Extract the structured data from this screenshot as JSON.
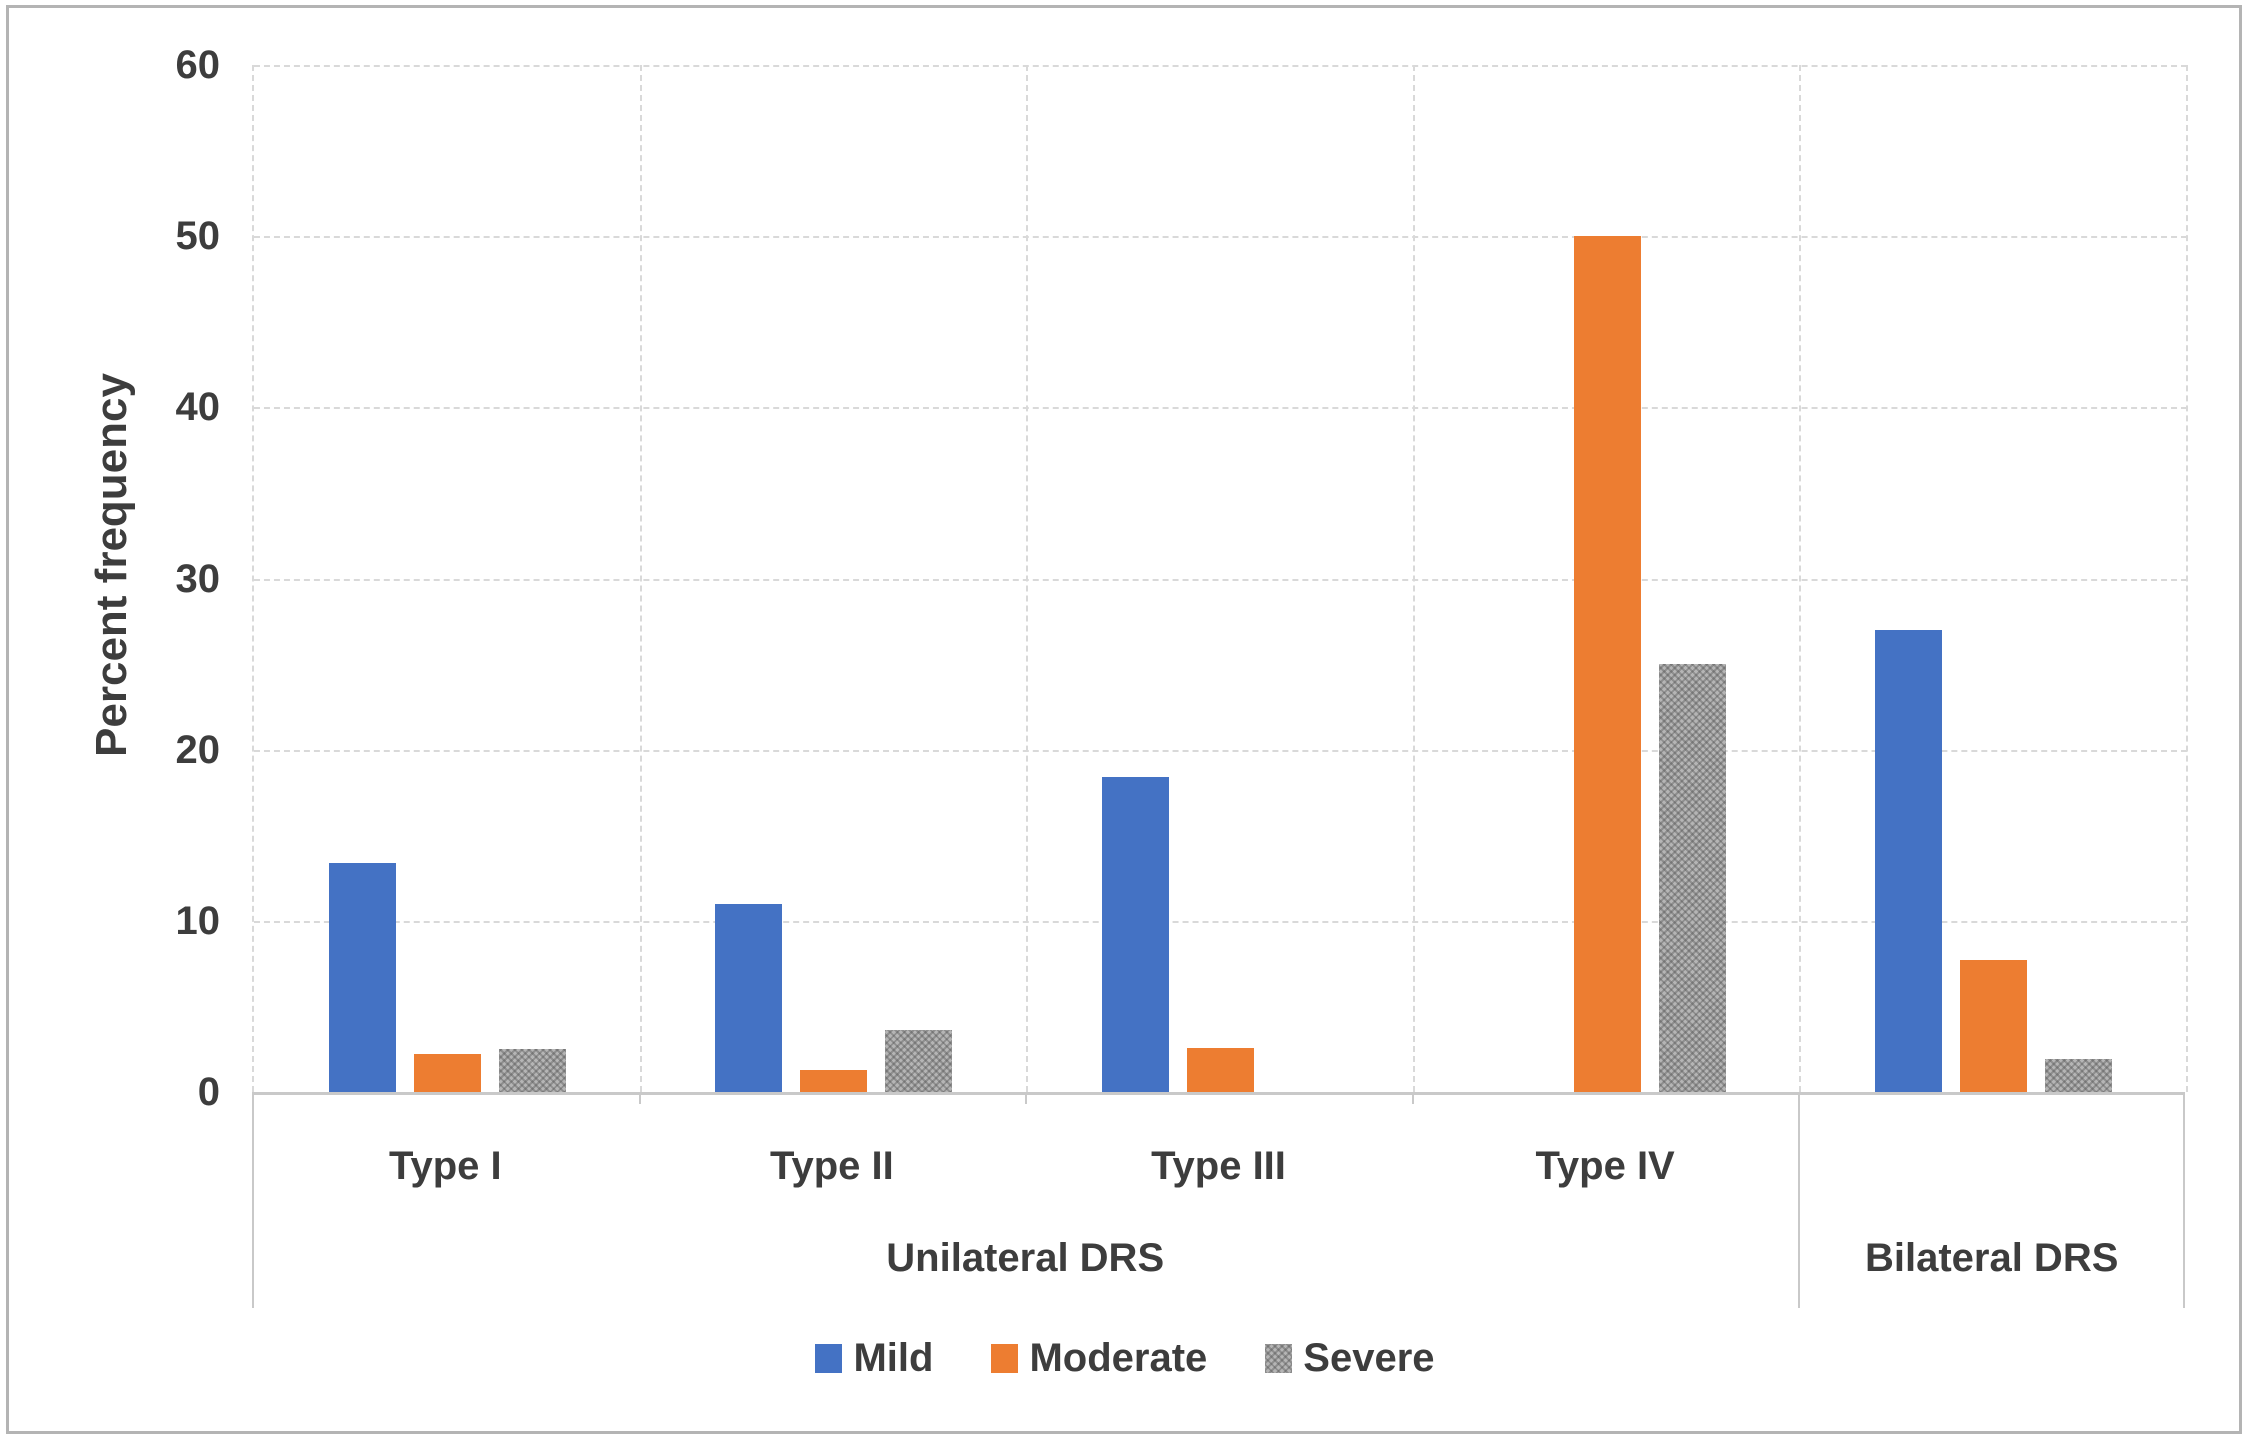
{
  "chart_data": {
    "type": "bar",
    "title": "",
    "ylabel": "Percent frequency",
    "ylim": [
      0,
      60
    ],
    "ytick_step": 10,
    "ytick_labels": [
      "0",
      "10",
      "20",
      "30",
      "40",
      "50",
      "60"
    ],
    "grid": true,
    "legend_position": "bottom",
    "categories": [
      "Type I",
      "Type II",
      "Type III",
      "Type IV",
      ""
    ],
    "category_groups": [
      {
        "label": "Unilateral DRS",
        "start": 0,
        "end": 3
      },
      {
        "label": "Bilateral DRS",
        "start": 4,
        "end": 4
      }
    ],
    "series": [
      {
        "name": "Mild",
        "color": "#4472C4",
        "pattern": "solid",
        "values": [
          13.4,
          11.0,
          18.4,
          0,
          27.0
        ]
      },
      {
        "name": "Moderate",
        "color": "#ED7D31",
        "pattern": "solid",
        "values": [
          2.2,
          1.3,
          2.6,
          50.0,
          7.7
        ]
      },
      {
        "name": "Severe",
        "color": "#A6A6A6",
        "pattern": "dotted",
        "values": [
          2.5,
          3.6,
          0,
          25.0,
          1.9
        ]
      }
    ]
  }
}
